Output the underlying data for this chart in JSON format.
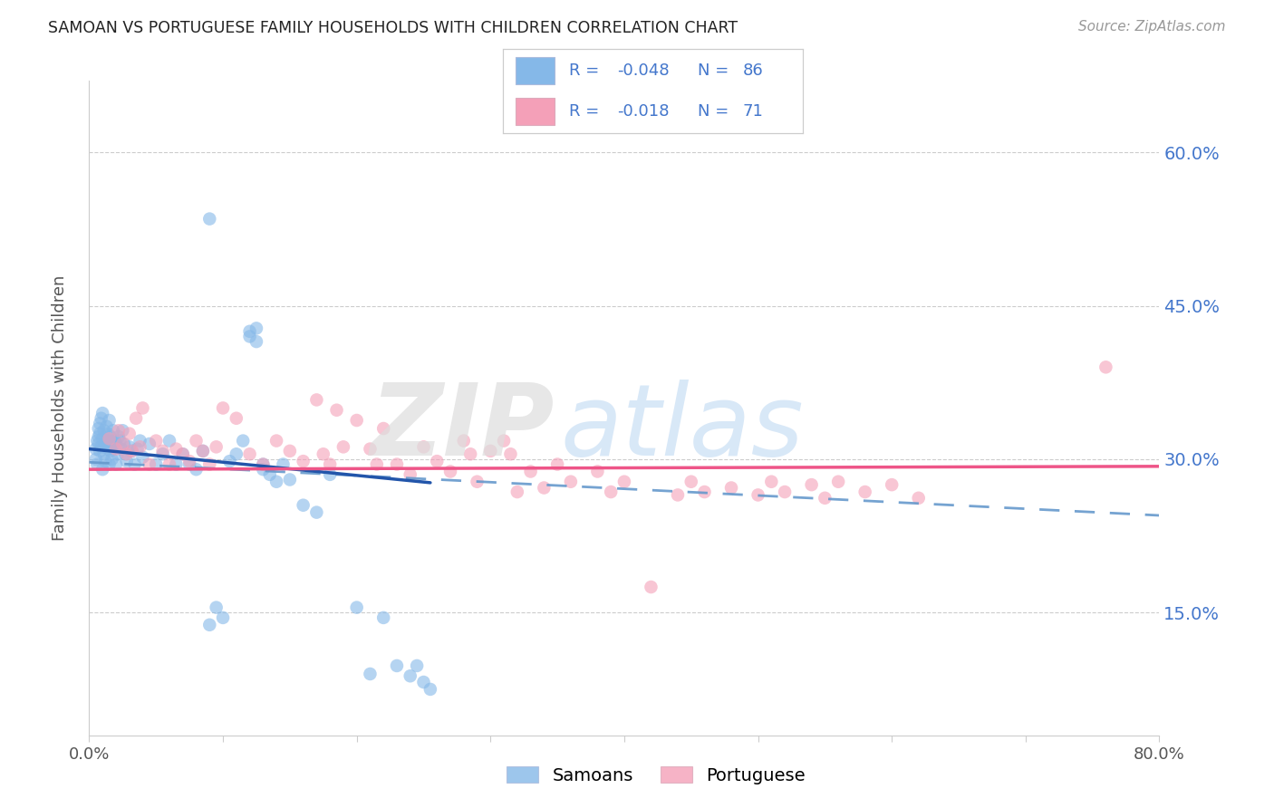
{
  "title": "SAMOAN VS PORTUGUESE FAMILY HOUSEHOLDS WITH CHILDREN CORRELATION CHART",
  "source": "Source: ZipAtlas.com",
  "ylabel": "Family Households with Children",
  "xlim": [
    0.0,
    0.8
  ],
  "ylim": [
    0.03,
    0.67
  ],
  "ytick_positions": [
    0.15,
    0.3,
    0.45,
    0.6
  ],
  "ytick_labels_right": [
    "15.0%",
    "30.0%",
    "45.0%",
    "60.0%"
  ],
  "xtick_positions": [
    0.0,
    0.1,
    0.2,
    0.3,
    0.4,
    0.5,
    0.6,
    0.7,
    0.8
  ],
  "color_samoan": "#85B8E8",
  "color_portuguese": "#F4A0B8",
  "color_trendline_samoan_solid": "#2255AA",
  "color_trendline_samoan_dash": "#6699CC",
  "color_trendline_portuguese": "#EE5588",
  "color_right_labels": "#4477CC",
  "color_legend_text": "#4477CC",
  "color_grid": "#CCCCCC",
  "legend_text_r1": "R = ",
  "legend_val_r1": "-0.048",
  "legend_text_n1": "N = ",
  "legend_val_n1": "86",
  "legend_text_r2": "R = ",
  "legend_val_r2": "-0.018",
  "legend_text_n2": "N = ",
  "legend_val_n2": "71",
  "samoan_x": [
    0.005,
    0.005,
    0.006,
    0.006,
    0.007,
    0.007,
    0.007,
    0.008,
    0.008,
    0.008,
    0.009,
    0.009,
    0.01,
    0.01,
    0.01,
    0.011,
    0.011,
    0.012,
    0.012,
    0.013,
    0.013,
    0.014,
    0.014,
    0.015,
    0.015,
    0.015,
    0.016,
    0.016,
    0.017,
    0.017,
    0.018,
    0.018,
    0.019,
    0.02,
    0.02,
    0.021,
    0.022,
    0.023,
    0.024,
    0.025,
    0.026,
    0.027,
    0.028,
    0.03,
    0.032,
    0.034,
    0.036,
    0.038,
    0.04,
    0.045,
    0.05,
    0.055,
    0.06,
    0.065,
    0.07,
    0.075,
    0.08,
    0.085,
    0.09,
    0.095,
    0.1,
    0.105,
    0.11,
    0.115,
    0.12,
    0.125,
    0.13,
    0.135,
    0.14,
    0.145,
    0.15,
    0.16,
    0.17,
    0.18,
    0.2,
    0.22,
    0.23,
    0.24,
    0.245,
    0.25,
    0.255,
    0.09,
    0.12,
    0.125,
    0.13,
    0.21
  ],
  "samoan_y": [
    0.3,
    0.31,
    0.295,
    0.318,
    0.322,
    0.315,
    0.33,
    0.308,
    0.325,
    0.335,
    0.34,
    0.312,
    0.29,
    0.32,
    0.345,
    0.305,
    0.328,
    0.315,
    0.298,
    0.332,
    0.318,
    0.31,
    0.325,
    0.295,
    0.318,
    0.338,
    0.308,
    0.322,
    0.315,
    0.3,
    0.312,
    0.328,
    0.318,
    0.295,
    0.315,
    0.305,
    0.322,
    0.318,
    0.31,
    0.328,
    0.315,
    0.305,
    0.298,
    0.312,
    0.308,
    0.295,
    0.31,
    0.318,
    0.302,
    0.315,
    0.295,
    0.305,
    0.318,
    0.295,
    0.305,
    0.295,
    0.29,
    0.308,
    0.138,
    0.155,
    0.145,
    0.298,
    0.305,
    0.318,
    0.42,
    0.415,
    0.295,
    0.285,
    0.278,
    0.295,
    0.28,
    0.255,
    0.248,
    0.285,
    0.155,
    0.145,
    0.098,
    0.088,
    0.098,
    0.082,
    0.075,
    0.535,
    0.425,
    0.428,
    0.29,
    0.09
  ],
  "portuguese_x": [
    0.015,
    0.02,
    0.022,
    0.025,
    0.028,
    0.03,
    0.032,
    0.035,
    0.038,
    0.04,
    0.045,
    0.05,
    0.055,
    0.06,
    0.065,
    0.07,
    0.075,
    0.08,
    0.085,
    0.09,
    0.095,
    0.1,
    0.11,
    0.12,
    0.13,
    0.14,
    0.15,
    0.16,
    0.17,
    0.175,
    0.18,
    0.185,
    0.19,
    0.2,
    0.21,
    0.215,
    0.22,
    0.23,
    0.24,
    0.25,
    0.26,
    0.27,
    0.28,
    0.285,
    0.29,
    0.3,
    0.31,
    0.315,
    0.32,
    0.33,
    0.34,
    0.35,
    0.36,
    0.38,
    0.39,
    0.4,
    0.42,
    0.44,
    0.45,
    0.46,
    0.48,
    0.5,
    0.51,
    0.52,
    0.54,
    0.55,
    0.56,
    0.58,
    0.6,
    0.62,
    0.76
  ],
  "portuguese_y": [
    0.32,
    0.31,
    0.328,
    0.315,
    0.305,
    0.325,
    0.308,
    0.34,
    0.312,
    0.35,
    0.295,
    0.318,
    0.308,
    0.295,
    0.31,
    0.305,
    0.298,
    0.318,
    0.308,
    0.295,
    0.312,
    0.35,
    0.34,
    0.305,
    0.295,
    0.318,
    0.308,
    0.298,
    0.358,
    0.305,
    0.295,
    0.348,
    0.312,
    0.338,
    0.31,
    0.295,
    0.33,
    0.295,
    0.285,
    0.312,
    0.298,
    0.288,
    0.318,
    0.305,
    0.278,
    0.308,
    0.318,
    0.305,
    0.268,
    0.288,
    0.272,
    0.295,
    0.278,
    0.288,
    0.268,
    0.278,
    0.175,
    0.265,
    0.278,
    0.268,
    0.272,
    0.265,
    0.278,
    0.268,
    0.275,
    0.262,
    0.278,
    0.268,
    0.275,
    0.262,
    0.39
  ]
}
